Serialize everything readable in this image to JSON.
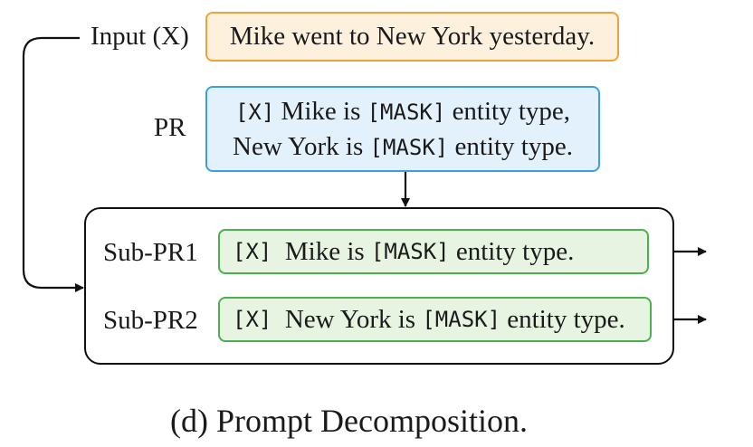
{
  "colors": {
    "input_border": "#f0a23a",
    "input_fill": "#fdf0dc",
    "pr_border": "#3d9ee8",
    "pr_fill": "#e3f1fd",
    "sub_border": "#4caf50",
    "sub_fill": "#e6f4e1",
    "line": "#111111"
  },
  "input": {
    "label": "Input (X)",
    "text": "Mike went to New York yesterday."
  },
  "pr": {
    "label": "PR",
    "line1": {
      "t1": "[X]",
      "t2": " Mike is ",
      "t3": "[MASK]",
      "t4": " entity type,"
    },
    "line2": {
      "t1": "New York is ",
      "t2": "[MASK]",
      "t3": " entity type."
    }
  },
  "sub_prs": [
    {
      "label": "Sub-PR1",
      "t1": "[X]",
      "t2": "  Mike is ",
      "t3": "[MASK]",
      "t4": " entity type."
    },
    {
      "label": "Sub-PR2",
      "t1": "[X]",
      "t2": "  New York is ",
      "t3": "[MASK]",
      "t4": " entity type."
    }
  ],
  "caption": "(d) Prompt Decomposition."
}
